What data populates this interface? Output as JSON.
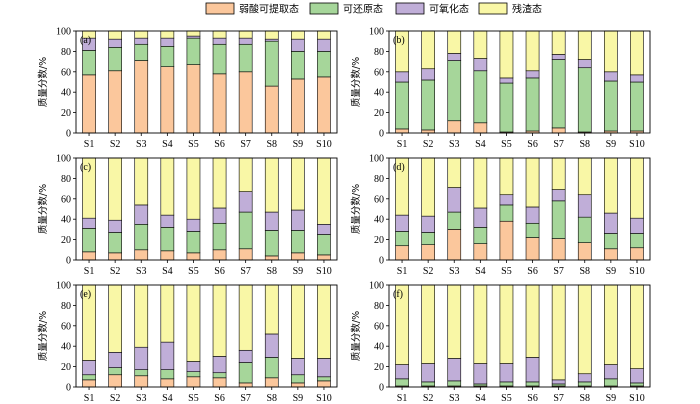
{
  "legend": {
    "items": [
      {
        "label": "弱酸可提取态",
        "color": "#fbc79c"
      },
      {
        "label": "可还原态",
        "color": "#a6d69a"
      },
      {
        "label": "可氧化态",
        "color": "#c0aed8"
      },
      {
        "label": "残渣态",
        "color": "#f9f7a6"
      }
    ]
  },
  "chart_data": [
    {
      "type": "bar",
      "stacked": true,
      "panel_label": "(a)",
      "ylabel": "质量分数/%",
      "ylim": [
        0,
        100
      ],
      "yticks": [
        0,
        20,
        40,
        60,
        80,
        100
      ],
      "categories": [
        "S1",
        "S2",
        "S3",
        "S4",
        "S5",
        "S6",
        "S7",
        "S8",
        "S9",
        "S10"
      ],
      "series": [
        {
          "name": "弱酸可提取态",
          "values": [
            57,
            61,
            71,
            65,
            67,
            58,
            60,
            46,
            53,
            55
          ]
        },
        {
          "name": "可还原态",
          "values": [
            24,
            23,
            16,
            20,
            26,
            29,
            27,
            44,
            27,
            25
          ]
        },
        {
          "name": "可氧化态",
          "values": [
            12,
            8,
            6,
            8,
            2,
            6,
            6,
            2,
            12,
            12
          ]
        },
        {
          "name": "残渣态",
          "values": [
            7,
            8,
            7,
            7,
            5,
            7,
            7,
            8,
            8,
            8
          ]
        }
      ]
    },
    {
      "type": "bar",
      "stacked": true,
      "panel_label": "(b)",
      "ylabel": "质量分数/%",
      "ylim": [
        0,
        100
      ],
      "yticks": [
        0,
        20,
        40,
        60,
        80,
        100
      ],
      "categories": [
        "S1",
        "S2",
        "S3",
        "S4",
        "S5",
        "S6",
        "S7",
        "S8",
        "S9",
        "S10"
      ],
      "series": [
        {
          "name": "弱酸可提取态",
          "values": [
            4,
            3,
            12,
            10,
            1,
            2,
            5,
            1,
            2,
            2
          ]
        },
        {
          "name": "可还原态",
          "values": [
            46,
            49,
            59,
            51,
            48,
            52,
            67,
            63,
            49,
            48
          ]
        },
        {
          "name": "可氧化态",
          "values": [
            10,
            11,
            7,
            12,
            5,
            7,
            5,
            8,
            9,
            7
          ]
        },
        {
          "name": "残渣态",
          "values": [
            40,
            37,
            22,
            27,
            46,
            39,
            23,
            28,
            40,
            43
          ]
        }
      ]
    },
    {
      "type": "bar",
      "stacked": true,
      "panel_label": "(c)",
      "ylabel": "质量分数/%",
      "ylim": [
        0,
        100
      ],
      "yticks": [
        0,
        20,
        40,
        60,
        80,
        100
      ],
      "categories": [
        "S1",
        "S2",
        "S3",
        "S4",
        "S5",
        "S6",
        "S7",
        "S8",
        "S9",
        "S10"
      ],
      "series": [
        {
          "name": "弱酸可提取态",
          "values": [
            8,
            7,
            10,
            9,
            7,
            10,
            11,
            4,
            7,
            5
          ]
        },
        {
          "name": "可还原态",
          "values": [
            23,
            20,
            25,
            23,
            21,
            26,
            36,
            25,
            22,
            20
          ]
        },
        {
          "name": "可氧化态",
          "values": [
            10,
            12,
            19,
            12,
            12,
            15,
            20,
            18,
            20,
            10
          ]
        },
        {
          "name": "残渣态",
          "values": [
            59,
            61,
            46,
            56,
            60,
            49,
            33,
            53,
            51,
            65
          ]
        }
      ]
    },
    {
      "type": "bar",
      "stacked": true,
      "panel_label": "(d)",
      "ylabel": "质量分数/%",
      "ylim": [
        0,
        100
      ],
      "yticks": [
        0,
        20,
        40,
        60,
        80,
        100
      ],
      "categories": [
        "S1",
        "S2",
        "S3",
        "S4",
        "S5",
        "S6",
        "S7",
        "S8",
        "S9",
        "S10"
      ],
      "series": [
        {
          "name": "弱酸可提取态",
          "values": [
            14,
            15,
            30,
            16,
            38,
            22,
            21,
            17,
            11,
            12
          ]
        },
        {
          "name": "可还原态",
          "values": [
            14,
            12,
            17,
            16,
            16,
            14,
            37,
            25,
            15,
            14
          ]
        },
        {
          "name": "可氧化态",
          "values": [
            16,
            16,
            24,
            19,
            10,
            16,
            11,
            22,
            20,
            15
          ]
        },
        {
          "name": "残渣态",
          "values": [
            56,
            57,
            29,
            49,
            36,
            48,
            31,
            36,
            54,
            59
          ]
        }
      ]
    },
    {
      "type": "bar",
      "stacked": true,
      "panel_label": "(e)",
      "ylabel": "质量分数/%",
      "ylim": [
        0,
        100
      ],
      "yticks": [
        0,
        20,
        40,
        60,
        80,
        100
      ],
      "categories": [
        "S1",
        "S2",
        "S3",
        "S4",
        "S5",
        "S6",
        "S7",
        "S8",
        "S9",
        "S10"
      ],
      "series": [
        {
          "name": "弱酸可提取态",
          "values": [
            7,
            12,
            11,
            8,
            10,
            9,
            4,
            9,
            4,
            6
          ]
        },
        {
          "name": "可还原态",
          "values": [
            5,
            7,
            6,
            9,
            5,
            5,
            20,
            20,
            8,
            4
          ]
        },
        {
          "name": "可氧化态",
          "values": [
            14,
            15,
            22,
            27,
            10,
            16,
            12,
            23,
            16,
            18
          ]
        },
        {
          "name": "残渣态",
          "values": [
            74,
            66,
            61,
            56,
            75,
            70,
            64,
            48,
            72,
            72
          ]
        }
      ]
    },
    {
      "type": "bar",
      "stacked": true,
      "panel_label": "(f)",
      "ylabel": "质量分数/%",
      "ylim": [
        0,
        100
      ],
      "yticks": [
        0,
        20,
        40,
        60,
        80,
        100
      ],
      "categories": [
        "S1",
        "S2",
        "S3",
        "S4",
        "S5",
        "S6",
        "S7",
        "S8",
        "S9",
        "S10"
      ],
      "series": [
        {
          "name": "弱酸可提取态",
          "values": [
            1,
            1,
            1,
            1,
            1,
            1,
            1,
            1,
            1,
            1
          ]
        },
        {
          "name": "可还原态",
          "values": [
            7,
            4,
            5,
            2,
            4,
            4,
            2,
            4,
            7,
            3
          ]
        },
        {
          "name": "可氧化态",
          "values": [
            14,
            18,
            22,
            20,
            18,
            24,
            4,
            8,
            14,
            14
          ]
        },
        {
          "name": "残渣态",
          "values": [
            78,
            77,
            72,
            77,
            77,
            71,
            93,
            87,
            78,
            82
          ]
        }
      ]
    }
  ]
}
